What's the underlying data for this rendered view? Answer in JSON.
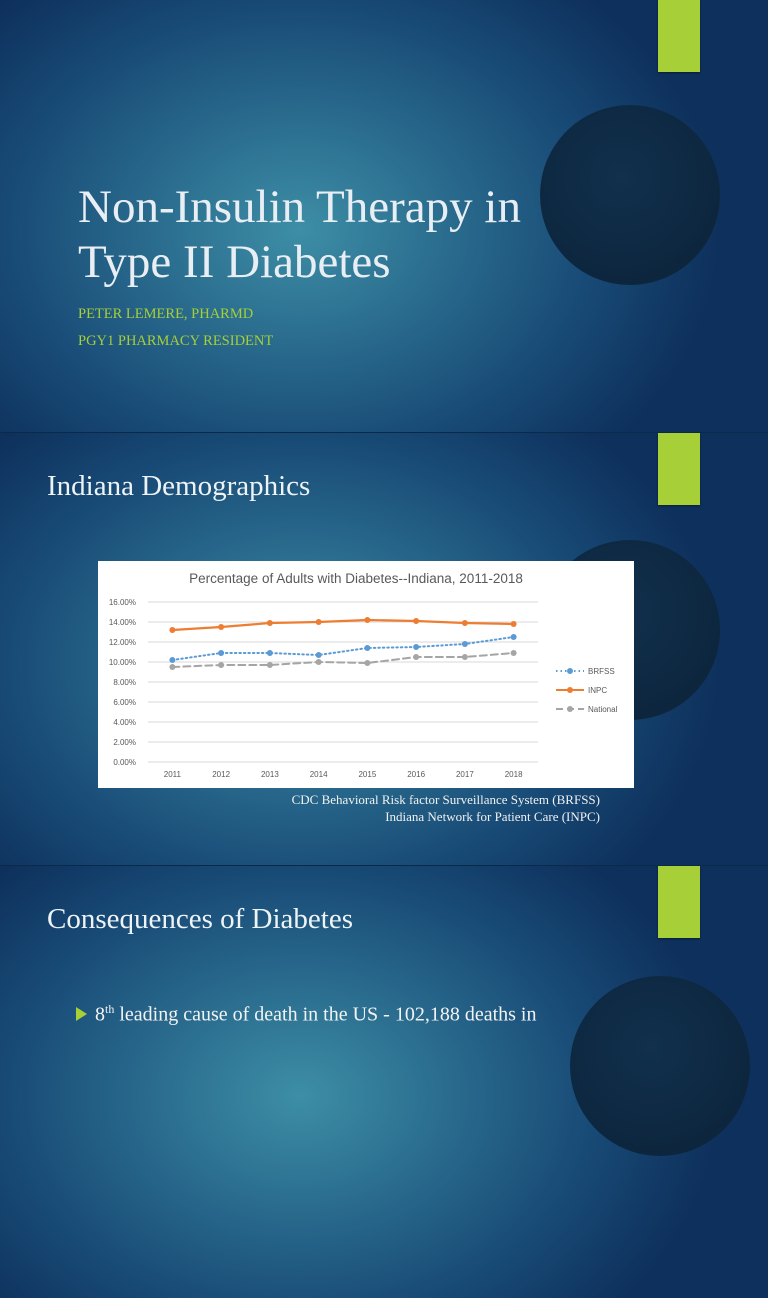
{
  "slides": [
    {
      "title": "Non-Insulin Therapy in Type II Diabetes",
      "subtitle_lines": [
        "PETER LEMERE, PHARMD",
        "PGY1 PHARMACY RESIDENT"
      ]
    },
    {
      "title": "Indiana Demographics",
      "source_lines": [
        "CDC Behavioral Risk factor Surveillance System (BRFSS)",
        "Indiana Network for Patient Care (INPC)"
      ]
    },
    {
      "title": "Consequences of Diabetes",
      "bullet_sup": "th",
      "bullet_prefix": "8",
      "bullet_text": " leading cause of death in the US  - 102,188 deaths in"
    }
  ],
  "colors": {
    "accent": "#a6cf38",
    "brfss": "#5b9bd5",
    "inpc": "#ed7d31",
    "national": "#a5a5a5"
  },
  "chart_data": {
    "type": "line",
    "title": "Percentage of Adults with Diabetes--Indiana, 2011-2018",
    "categories": [
      "2011",
      "2012",
      "2013",
      "2014",
      "2015",
      "2016",
      "2017",
      "2018"
    ],
    "ylim": [
      0,
      16
    ],
    "yticks": [
      "0.00%",
      "2.00%",
      "4.00%",
      "6.00%",
      "8.00%",
      "10.00%",
      "12.00%",
      "14.00%",
      "16.00%"
    ],
    "grid": true,
    "legend": "right",
    "series": [
      {
        "name": "BRFSS",
        "style": "dotted",
        "values": [
          10.2,
          10.9,
          10.9,
          10.7,
          11.4,
          11.5,
          11.8,
          12.5
        ]
      },
      {
        "name": "INPC",
        "style": "solid",
        "values": [
          13.2,
          13.5,
          13.9,
          14.0,
          14.2,
          14.1,
          13.9,
          13.8
        ]
      },
      {
        "name": "National",
        "style": "dashed",
        "values": [
          9.5,
          9.7,
          9.7,
          10.0,
          9.9,
          10.5,
          10.5,
          10.9
        ]
      }
    ]
  }
}
